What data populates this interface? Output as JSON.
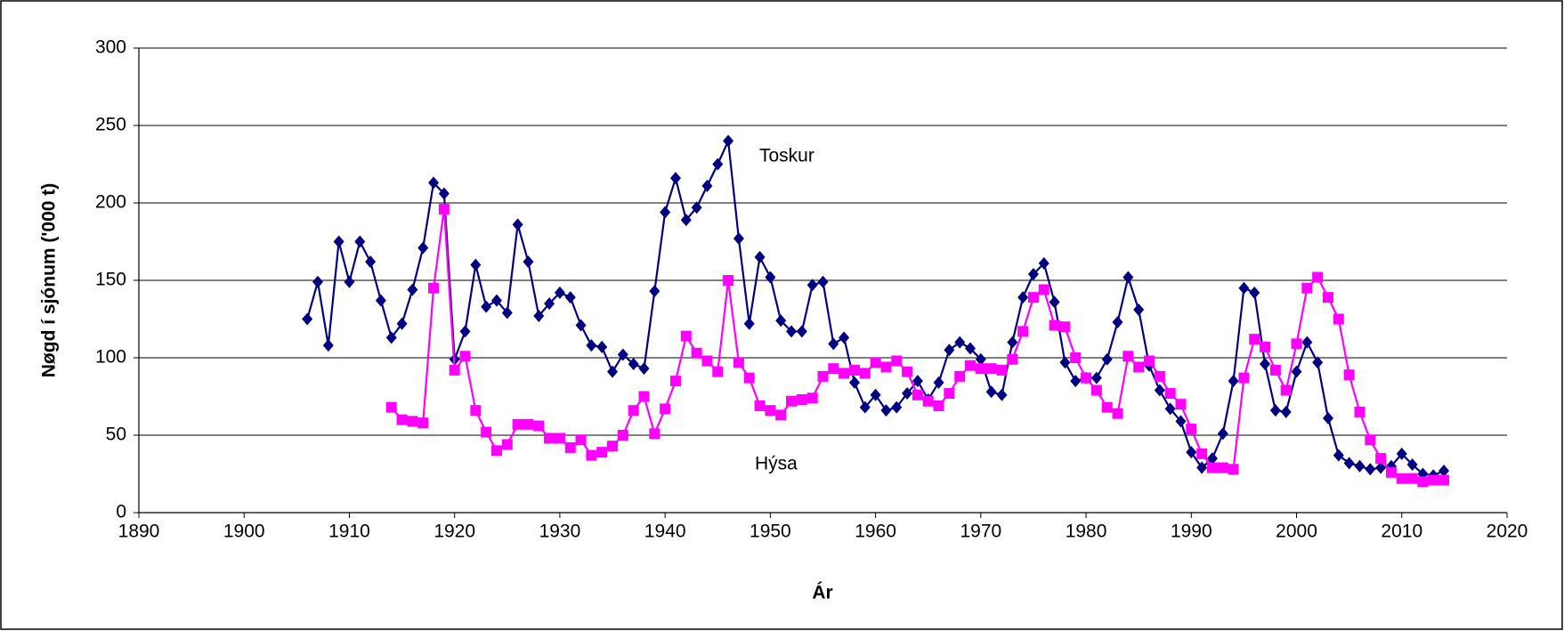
{
  "chart_data": {
    "type": "line",
    "xlabel": "Ár",
    "ylabel": "Nøgd í sjónum ('000 t)",
    "x": [
      1906,
      1907,
      1908,
      1909,
      1910,
      1911,
      1912,
      1913,
      1914,
      1915,
      1916,
      1917,
      1918,
      1919,
      1920,
      1921,
      1922,
      1923,
      1924,
      1925,
      1926,
      1927,
      1928,
      1929,
      1930,
      1931,
      1932,
      1933,
      1934,
      1935,
      1936,
      1937,
      1938,
      1939,
      1940,
      1941,
      1942,
      1943,
      1944,
      1945,
      1946,
      1947,
      1948,
      1949,
      1950,
      1951,
      1952,
      1953,
      1954,
      1955,
      1956,
      1957,
      1958,
      1959,
      1960,
      1961,
      1962,
      1963,
      1964,
      1965,
      1966,
      1967,
      1968,
      1969,
      1970,
      1971,
      1972,
      1973,
      1974,
      1975,
      1976,
      1977,
      1978,
      1979,
      1980,
      1981,
      1982,
      1983,
      1984,
      1985,
      1986,
      1987,
      1988,
      1989,
      1990,
      1991,
      1992,
      1993,
      1994,
      1995,
      1996,
      1997,
      1998,
      1999,
      2000,
      2001,
      2002,
      2003,
      2004,
      2005,
      2006,
      2007,
      2008,
      2009,
      2010,
      2011,
      2012,
      2013,
      2014
    ],
    "series": [
      {
        "name": "Toskur",
        "color": "#000080",
        "marker": "diamond",
        "values": [
          125,
          149,
          108,
          175,
          149,
          175,
          162,
          137,
          113,
          122,
          144,
          171,
          213,
          206,
          99,
          117,
          160,
          133,
          137,
          129,
          186,
          162,
          127,
          135,
          142,
          139,
          121,
          108,
          107,
          91,
          102,
          96,
          93,
          143,
          194,
          216,
          189,
          197,
          211,
          225,
          240,
          177,
          122,
          165,
          152,
          124,
          117,
          117,
          147,
          149,
          109,
          113,
          84,
          68,
          76,
          66,
          68,
          77,
          85,
          73,
          84,
          105,
          110,
          106,
          99,
          78,
          76,
          110,
          139,
          154,
          161,
          136,
          97,
          85,
          87,
          87,
          99,
          123,
          152,
          131,
          95,
          79,
          67,
          59,
          39,
          29,
          35,
          51,
          85,
          145,
          142,
          96,
          66,
          65,
          91,
          110,
          97,
          61,
          37,
          32,
          30,
          28,
          29,
          30,
          38,
          31,
          25,
          24,
          27
        ]
      },
      {
        "name": "Hýsa",
        "color": "#FF00FF",
        "marker": "square",
        "values": [
          null,
          null,
          null,
          null,
          null,
          null,
          null,
          null,
          68,
          60,
          59,
          58,
          145,
          196,
          92,
          101,
          66,
          52,
          40,
          44,
          57,
          57,
          56,
          48,
          48,
          42,
          47,
          37,
          39,
          43,
          50,
          66,
          75,
          51,
          67,
          85,
          114,
          103,
          98,
          91,
          150,
          97,
          87,
          69,
          66,
          63,
          72,
          73,
          74,
          88,
          93,
          90,
          92,
          90,
          97,
          94,
          98,
          91,
          76,
          72,
          69,
          77,
          88,
          95,
          93,
          93,
          92,
          99,
          117,
          139,
          144,
          121,
          120,
          100,
          87,
          79,
          68,
          64,
          101,
          94,
          98,
          88,
          77,
          70,
          54,
          38,
          29,
          29,
          28,
          87,
          112,
          107,
          92,
          79,
          109,
          145,
          152,
          139,
          125,
          89,
          65,
          47,
          35,
          26,
          22,
          22,
          20,
          21,
          21
        ]
      }
    ],
    "xlim": [
      1890,
      2020
    ],
    "xticks": [
      1890,
      1900,
      1910,
      1920,
      1930,
      1940,
      1950,
      1960,
      1970,
      1980,
      1990,
      2000,
      2010,
      2020
    ],
    "ylim": [
      0,
      300
    ],
    "yticks": [
      0,
      50,
      100,
      150,
      200,
      250,
      300
    ],
    "grid": true
  }
}
